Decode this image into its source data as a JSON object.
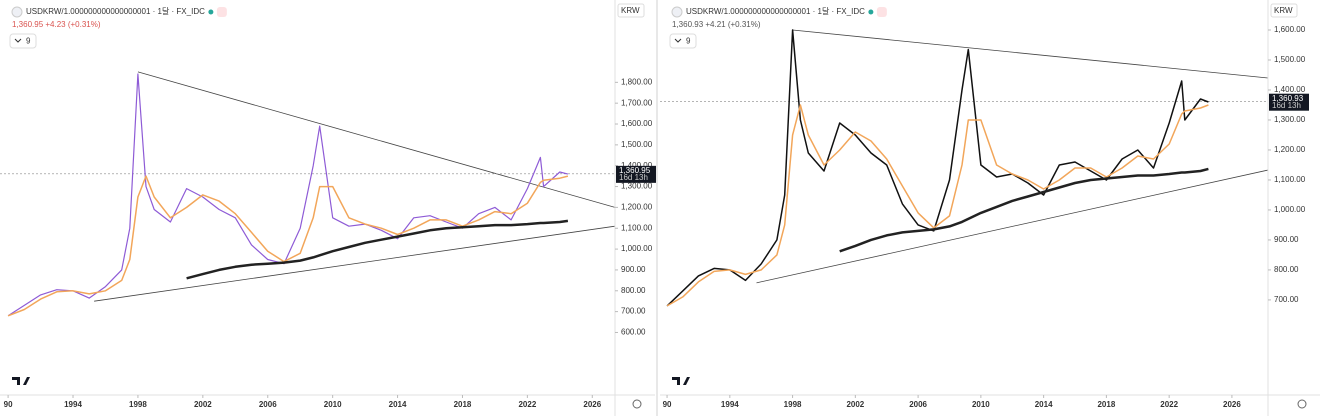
{
  "chart_data": [
    {
      "type": "line",
      "title": "USDKRW/1.000000000000000001 · 1달 · FX_IDC",
      "quote": "1,360.95 +4.23 (+0.31%)",
      "quote_color": "#d9534f",
      "indicator_count": "9",
      "currency": "KRW",
      "x": [
        1990,
        1991,
        1992,
        1993,
        1994,
        1995,
        1996,
        1997,
        1997.5,
        1998,
        1998.5,
        1999,
        2000,
        2001,
        2002,
        2003,
        2004,
        2005,
        2006,
        2007,
        2008,
        2008.8,
        2009.2,
        2010,
        2011,
        2012,
        2013,
        2014,
        2015,
        2016,
        2017,
        2018,
        2019,
        2020,
        2021,
        2022,
        2022.8,
        2023,
        2024,
        2024.5
      ],
      "series": [
        {
          "color": "#8e5bd6",
          "width": 1.2,
          "values": [
            680,
            730,
            780,
            805,
            800,
            765,
            820,
            900,
            1100,
            1840,
            1300,
            1190,
            1130,
            1290,
            1250,
            1190,
            1150,
            1020,
            950,
            930,
            1100,
            1400,
            1590,
            1150,
            1110,
            1120,
            1090,
            1050,
            1150,
            1160,
            1130,
            1100,
            1170,
            1200,
            1140,
            1290,
            1440,
            1300,
            1370,
            1360
          ]
        },
        {
          "color": "#f2a65a",
          "width": 1.5,
          "values": [
            680,
            710,
            760,
            795,
            800,
            785,
            800,
            850,
            950,
            1250,
            1350,
            1250,
            1150,
            1200,
            1260,
            1230,
            1170,
            1080,
            990,
            940,
            980,
            1150,
            1300,
            1300,
            1150,
            1120,
            1100,
            1070,
            1100,
            1140,
            1140,
            1110,
            1140,
            1180,
            1170,
            1220,
            1320,
            1330,
            1340,
            1350
          ]
        },
        {
          "color": "#222222",
          "width": 2.5,
          "values": [
            null,
            null,
            null,
            null,
            null,
            null,
            null,
            null,
            null,
            null,
            null,
            null,
            null,
            860,
            880,
            900,
            915,
            925,
            930,
            935,
            945,
            960,
            970,
            990,
            1010,
            1030,
            1045,
            1060,
            1075,
            1090,
            1100,
            1105,
            1110,
            1115,
            1115,
            1120,
            1125,
            1125,
            1130,
            1135
          ]
        }
      ],
      "trendlines": [
        {
          "x": [
            1998,
            2027.4
          ],
          "values": [
            1850,
            1200
          ]
        },
        {
          "x": [
            1995.3,
            2027.4
          ],
          "values": [
            750,
            1110
          ]
        }
      ],
      "current_price": {
        "value": 1360.95,
        "label": "1,360.95"
      },
      "countdown": "16d 13h",
      "xlim": [
        1989.5,
        2027.4
      ],
      "ylim": [
        300,
        2195
      ],
      "xticks": [
        {
          "value": 1990,
          "label": "90"
        },
        1994,
        1998,
        2002,
        2006,
        2010,
        2014,
        2018,
        2022,
        2026
      ],
      "yticks": [
        {
          "value": 600,
          "label": "600.00"
        },
        {
          "value": 700,
          "label": "700.00"
        },
        {
          "value": 800,
          "label": "800.00"
        },
        {
          "value": 900,
          "label": "900.00"
        },
        {
          "value": 1000,
          "label": "1,000.00"
        },
        {
          "value": 1100,
          "label": "1,100.00"
        },
        {
          "value": 1200,
          "label": "1,200.00"
        },
        {
          "value": 1300,
          "label": "1,300.00"
        },
        {
          "value": 1400,
          "label": "1,400.00"
        },
        {
          "value": 1500,
          "label": "1,500.00"
        },
        {
          "value": 1600,
          "label": "1,600.00"
        },
        {
          "value": 1700,
          "label": "1,700.00"
        },
        {
          "value": 1800,
          "label": "1,800.00"
        }
      ]
    },
    {
      "type": "line",
      "title": "USDKRW/1.000000000000000001 · 1달 · FX_IDC",
      "quote": "1,360.93 +4.21 (+0.31%)",
      "quote_color": "#555555",
      "indicator_count": "9",
      "currency": "KRW",
      "x": [
        1990,
        1991,
        1992,
        1993,
        1994,
        1995,
        1996,
        1997,
        1997.5,
        1998,
        1998.5,
        1999,
        2000,
        2001,
        2002,
        2003,
        2004,
        2005,
        2006,
        2007,
        2008,
        2008.8,
        2009.2,
        2010,
        2011,
        2012,
        2013,
        2014,
        2015,
        2016,
        2017,
        2018,
        2019,
        2020,
        2021,
        2022,
        2022.8,
        2023,
        2024,
        2024.5
      ],
      "series": [
        {
          "color": "#111111",
          "width": 1.5,
          "values": [
            680,
            730,
            780,
            805,
            800,
            765,
            820,
            900,
            1050,
            1600,
            1300,
            1190,
            1130,
            1290,
            1250,
            1190,
            1150,
            1020,
            950,
            930,
            1100,
            1400,
            1535,
            1150,
            1110,
            1120,
            1090,
            1050,
            1150,
            1160,
            1130,
            1100,
            1170,
            1200,
            1140,
            1290,
            1430,
            1300,
            1370,
            1360
          ]
        },
        {
          "color": "#f2a65a",
          "width": 1.5,
          "values": [
            680,
            710,
            760,
            795,
            800,
            785,
            800,
            850,
            950,
            1250,
            1350,
            1250,
            1150,
            1200,
            1260,
            1230,
            1170,
            1080,
            990,
            940,
            980,
            1150,
            1300,
            1300,
            1150,
            1120,
            1100,
            1070,
            1100,
            1140,
            1140,
            1110,
            1140,
            1180,
            1170,
            1220,
            1320,
            1330,
            1340,
            1350
          ]
        },
        {
          "color": "#222222",
          "width": 2.5,
          "values": [
            null,
            null,
            null,
            null,
            null,
            null,
            null,
            null,
            null,
            null,
            null,
            null,
            null,
            862,
            880,
            900,
            915,
            925,
            930,
            935,
            945,
            960,
            970,
            990,
            1010,
            1030,
            1045,
            1060,
            1075,
            1090,
            1100,
            1105,
            1110,
            1115,
            1115,
            1120,
            1125,
            1125,
            1130,
            1137
          ]
        }
      ],
      "trendlines": [
        {
          "x": [
            1998,
            2028.3
          ],
          "values": [
            1600,
            1440
          ]
        },
        {
          "x": [
            1995.7,
            2028.3
          ],
          "values": [
            757,
            1133
          ]
        }
      ],
      "current_price": {
        "value": 1360.93,
        "label": "1,360.93"
      },
      "countdown": "16d 13h",
      "xlim": [
        1989.55,
        2028.3
      ],
      "ylim": [
        383,
        1700
      ],
      "xticks": [
        {
          "value": 1990,
          "label": "90"
        },
        1994,
        1998,
        2002,
        2006,
        2010,
        2014,
        2018,
        2022,
        2026
      ],
      "yticks": [
        {
          "value": 700,
          "label": "700.00"
        },
        {
          "value": 800,
          "label": "800.00"
        },
        {
          "value": 900,
          "label": "900.00"
        },
        {
          "value": 1000,
          "label": "1,000.00"
        },
        {
          "value": 1100,
          "label": "1,100.00"
        },
        {
          "value": 1200,
          "label": "1,200.00"
        },
        {
          "value": 1300,
          "label": "1,300.00"
        },
        {
          "value": 1400,
          "label": "1,400.00"
        },
        {
          "value": 1500,
          "label": "1,500.00"
        },
        {
          "value": 1600,
          "label": "1,600.00"
        }
      ]
    }
  ]
}
